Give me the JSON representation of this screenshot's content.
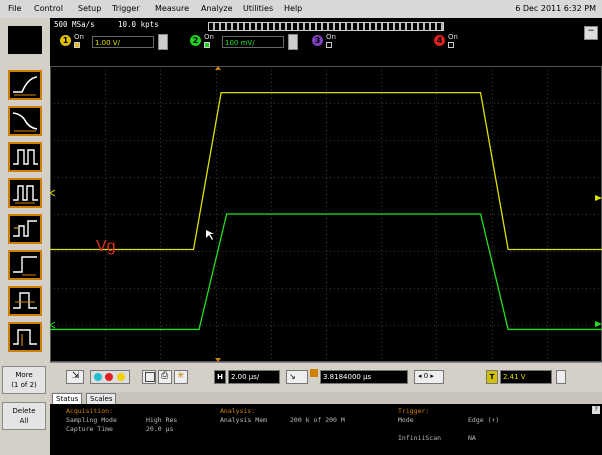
{
  "menu": {
    "items": [
      "File",
      "Control",
      "Setup",
      "Trigger",
      "Measure",
      "Analyze",
      "Utilities",
      "Help"
    ],
    "datetime": "6 Dec 2011  6:32 PM"
  },
  "acq": {
    "sample_rate": "500 MSa/s",
    "points": "10.0 kpts"
  },
  "channels": [
    {
      "num": "1",
      "on_label": "On",
      "scale": "1.00 V/",
      "color": "#e0c000"
    },
    {
      "num": "2",
      "on_label": "On",
      "scale": "100 mV/",
      "color": "#20d020"
    },
    {
      "num": "3",
      "on_label": "On",
      "color": "#8040c0"
    },
    {
      "num": "4",
      "on_label": "On",
      "color": "#e02020"
    }
  ],
  "sidebar": {
    "more_label": "More\n(1 of 2)",
    "delete_label": "Delete\nAll"
  },
  "annotation": {
    "text": "Vg",
    "color": "#e03020"
  },
  "waveforms": {
    "ch1": {
      "color": "#e0e000",
      "low_level": 0.62,
      "high_level": 0.09,
      "rise_start": 0.26,
      "rise_end": 0.31,
      "fall_start": 0.78,
      "fall_end": 0.83
    },
    "ch2": {
      "color": "#20e020",
      "low_level": 0.89,
      "high_level": 0.5,
      "rise_start": 0.27,
      "rise_end": 0.32,
      "fall_start": 0.78,
      "fall_end": 0.83
    }
  },
  "bottom": {
    "timebase_label": "H",
    "timebase": "2.00 µs/",
    "delay": "3.8184000 µs",
    "trigger_level_label": "T",
    "trigger_level": "2.41 V"
  },
  "tabs": [
    "Status",
    "Scales"
  ],
  "status": {
    "acq_title": "Acquisition:",
    "sampling_mode_label": "Sampling Mode",
    "sampling_mode_value": "High Res",
    "capture_time_label": "Capture Time",
    "capture_time_value": "20.0 µs",
    "analysis_title": "Analysis:",
    "analysis_label": "Analysis Mem",
    "analysis_value": "200 k of 200 M",
    "trigger_title": "Trigger:",
    "mode_label": "Mode",
    "mode_value": "Edge (↑)",
    "infiniiscan_label": "InfiniiScan",
    "infiniiscan_value": "NA"
  }
}
